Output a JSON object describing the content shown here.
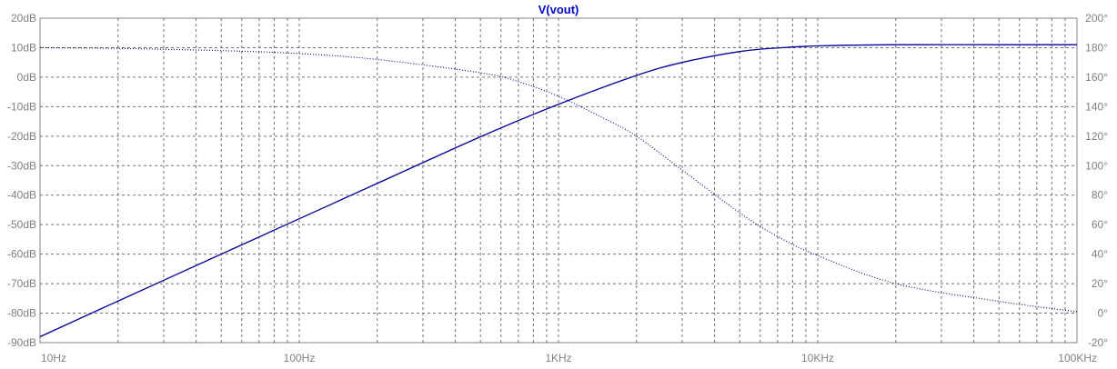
{
  "chart_data": {
    "type": "line",
    "title": "V(vout)",
    "x_scale": "log",
    "xlim": [
      10,
      100000
    ],
    "x_ticks": [
      {
        "value": 10,
        "label": "10Hz"
      },
      {
        "value": 100,
        "label": "100Hz"
      },
      {
        "value": 1000,
        "label": "1KHz"
      },
      {
        "value": 10000,
        "label": "10KHz"
      },
      {
        "value": 100000,
        "label": "100KHz"
      }
    ],
    "ylim_left": [
      -90,
      20
    ],
    "y_ticks_left": [
      {
        "value": 20,
        "label": "20dB"
      },
      {
        "value": 10,
        "label": "10dB"
      },
      {
        "value": 0,
        "label": "0dB"
      },
      {
        "value": -10,
        "label": "-10dB"
      },
      {
        "value": -20,
        "label": "-20dB"
      },
      {
        "value": -30,
        "label": "-30dB"
      },
      {
        "value": -40,
        "label": "-40dB"
      },
      {
        "value": -50,
        "label": "-50dB"
      },
      {
        "value": -60,
        "label": "-60dB"
      },
      {
        "value": -70,
        "label": "-70dB"
      },
      {
        "value": -80,
        "label": "-80dB"
      },
      {
        "value": -90,
        "label": "-90dB"
      }
    ],
    "ylim_right": [
      -20,
      200
    ],
    "y_ticks_right": [
      {
        "value": 200,
        "label": "200°"
      },
      {
        "value": 180,
        "label": "180°"
      },
      {
        "value": 160,
        "label": "160°"
      },
      {
        "value": 140,
        "label": "140°"
      },
      {
        "value": 120,
        "label": "120°"
      },
      {
        "value": 100,
        "label": "100°"
      },
      {
        "value": 80,
        "label": "80°"
      },
      {
        "value": 60,
        "label": "60°"
      },
      {
        "value": 40,
        "label": "40°"
      },
      {
        "value": 20,
        "label": "20°"
      },
      {
        "value": 0,
        "label": "0°"
      },
      {
        "value": -20,
        "label": "-20°"
      }
    ],
    "grid": true,
    "series": [
      {
        "axis": "left",
        "style": "solid",
        "color": "#00009a",
        "x": [
          10,
          20,
          50,
          100,
          200,
          500,
          1000,
          2000,
          3000,
          5000,
          7000,
          10000,
          20000,
          50000,
          100000
        ],
        "y": [
          -88.0,
          -75.9,
          -60.0,
          -48.0,
          -36.0,
          -20.2,
          -9.2,
          0.6,
          5.0,
          8.7,
          9.9,
          10.6,
          11.0,
          11.0,
          11.0
        ]
      },
      {
        "axis": "right",
        "style": "dotted",
        "color": "#00009a",
        "x": [
          10,
          20,
          50,
          100,
          200,
          500,
          700,
          1000,
          1500,
          2000,
          3000,
          5000,
          7000,
          10000,
          20000,
          50000,
          100000
        ],
        "y": [
          180,
          179.5,
          178,
          176,
          172,
          163,
          157,
          147,
          132,
          120,
          97,
          68,
          52,
          39,
          20,
          8,
          1
        ]
      }
    ]
  }
}
